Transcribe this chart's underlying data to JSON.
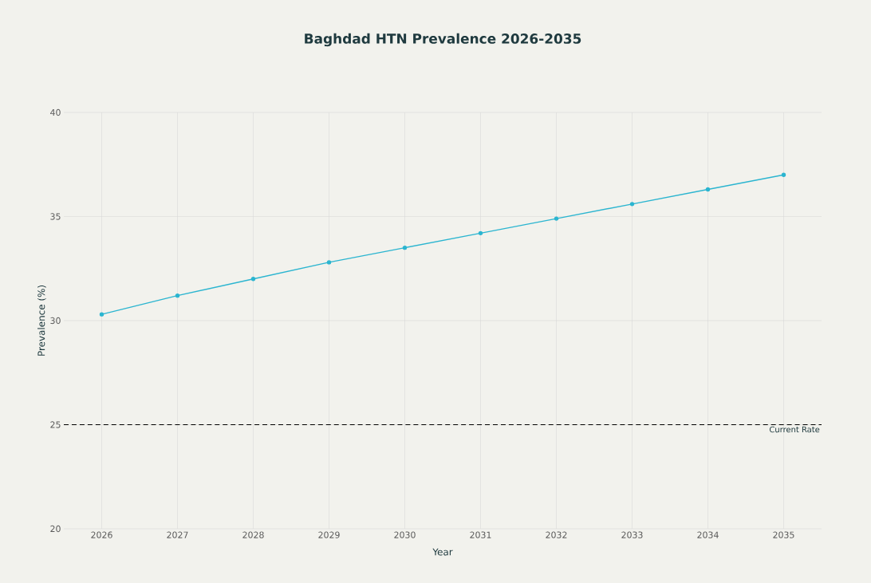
{
  "chart_data": {
    "type": "line",
    "title": "Baghdad HTN Prevalence 2026-2035",
    "xlabel": "Year",
    "ylabel": "Prevalence (%)",
    "x": [
      2026,
      2027,
      2028,
      2029,
      2030,
      2031,
      2032,
      2033,
      2034,
      2035
    ],
    "series": [
      {
        "color": "#2bb5d0",
        "values": [
          30.3,
          31.2,
          32.0,
          32.8,
          33.5,
          34.2,
          34.9,
          35.6,
          36.3,
          37.0
        ]
      }
    ],
    "xlim": [
      2025.5,
      2035.5
    ],
    "ylim": [
      20,
      40
    ],
    "xticks": [
      2026,
      2027,
      2028,
      2029,
      2030,
      2031,
      2032,
      2033,
      2034,
      2035
    ],
    "yticks": [
      20,
      25,
      30,
      35,
      40
    ],
    "ref_lines": [
      {
        "axis": "y",
        "value": 25,
        "label": "Current Rate",
        "color": "#000000",
        "line_style": "dashed"
      }
    ],
    "grid": true,
    "marker": "circle",
    "line_style": "solid"
  }
}
